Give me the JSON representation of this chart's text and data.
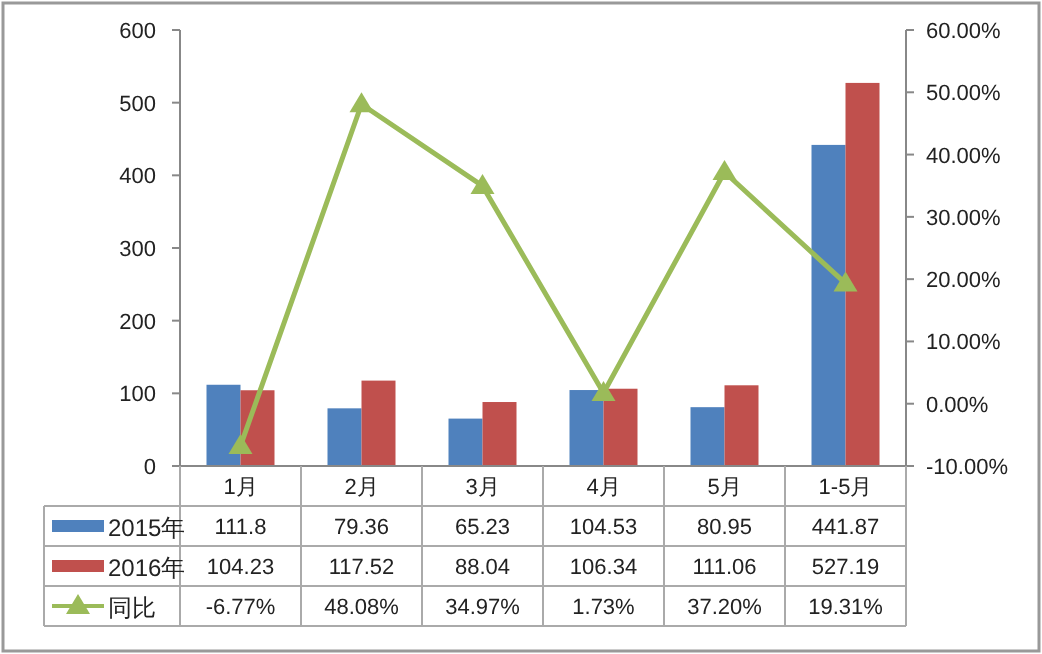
{
  "chart_data": {
    "type": "bar",
    "categories": [
      "1月",
      "2月",
      "3月",
      "4月",
      "5月",
      "1-5月"
    ],
    "series": [
      {
        "name": "2015年",
        "color": "#4f81bd",
        "values": [
          111.8,
          79.36,
          65.23,
          104.53,
          80.95,
          441.87
        ],
        "value_labels": [
          "111.8",
          "79.36",
          "65.23",
          "104.53",
          "80.95",
          "441.87"
        ]
      },
      {
        "name": "2016年",
        "color": "#c0504d",
        "values": [
          104.23,
          117.52,
          88.04,
          106.34,
          111.06,
          527.19
        ],
        "value_labels": [
          "104.23",
          "117.52",
          "88.04",
          "106.34",
          "111.06",
          "527.19"
        ]
      },
      {
        "name": "同比",
        "type": "line",
        "axis": "y2",
        "marker": "triangle",
        "color": "#9bbb59",
        "values": [
          -6.77,
          48.08,
          34.97,
          1.73,
          37.2,
          19.31
        ],
        "value_labels": [
          "-6.77%",
          "48.08%",
          "34.97%",
          "1.73%",
          "37.20%",
          "19.31%"
        ]
      }
    ],
    "ylim": [
      0,
      600
    ],
    "yticks": [
      0,
      100,
      200,
      300,
      400,
      500,
      600
    ],
    "y2lim": [
      -10,
      60
    ],
    "y2ticks": [
      {
        "value": -10,
        "label": "-10.00%"
      },
      {
        "value": 0,
        "label": "0.00%"
      },
      {
        "value": 10,
        "label": "10.00%"
      },
      {
        "value": 20,
        "label": "20.00%"
      },
      {
        "value": 30,
        "label": "30.00%"
      },
      {
        "value": 40,
        "label": "40.00%"
      },
      {
        "value": 50,
        "label": "50.00%"
      },
      {
        "value": 60,
        "label": "60.00%"
      }
    ],
    "legend": "bottom"
  }
}
